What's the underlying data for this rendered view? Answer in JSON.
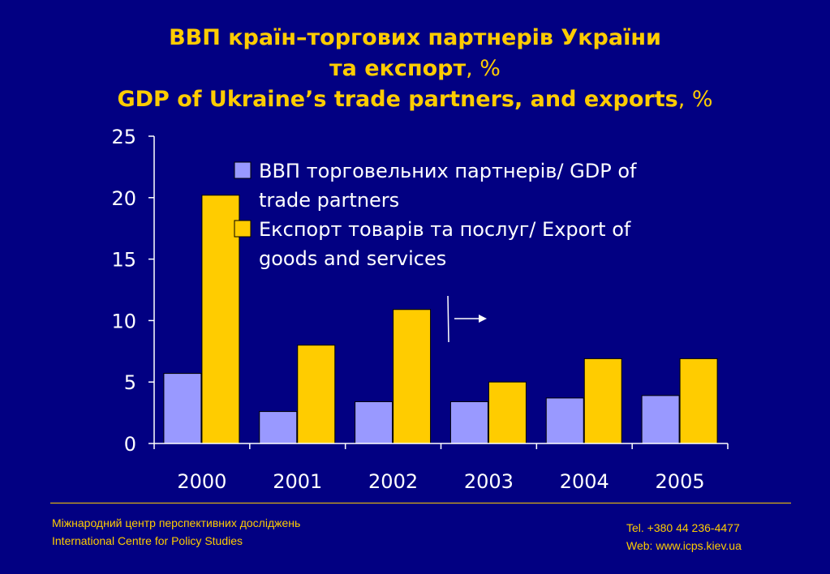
{
  "title": {
    "line1": "ВВП країн–торгових партнерів України",
    "line2_bold": "та експорт",
    "line2_pct": ", %",
    "line3_bold": "GDP of Ukraine’s trade partners, and exports",
    "line3_pct": ", %"
  },
  "chart_data": {
    "type": "bar",
    "categories": [
      "2000",
      "2001",
      "2002",
      "2003",
      "2004",
      "2005"
    ],
    "series": [
      {
        "name": "ВВП торговельних партнерів/ GDP of trade partners",
        "values": [
          5.7,
          2.6,
          3.4,
          3.4,
          3.7,
          3.9
        ],
        "color": "#9999FF"
      },
      {
        "name": "Експорт товарів та послуг/ Export of goods and services",
        "values": [
          20.2,
          8.0,
          10.9,
          5.0,
          6.9,
          6.9
        ],
        "color": "#FFCC00"
      }
    ],
    "ylim": [
      0,
      25
    ],
    "yticks": [
      0,
      5,
      10,
      15,
      20,
      25
    ],
    "legend_position": "top-right",
    "legend_lines": [
      [
        "ВВП торговельних партнерів/ GDP of",
        "trade partners"
      ],
      [
        "Експорт товарів та послуг/ Export of",
        "goods and services"
      ]
    ],
    "grid": false
  },
  "footer": {
    "org_ua": "Міжнародний центр перспективних досліджень",
    "org_en": "International Centre for Policy Studies",
    "tel": "Tel. +380 44 236-4477",
    "web": "Web: www.icps.kiev.ua"
  },
  "colors": {
    "background": "#020082",
    "accent": "#FFCC00",
    "text": "#FFFFFF"
  }
}
